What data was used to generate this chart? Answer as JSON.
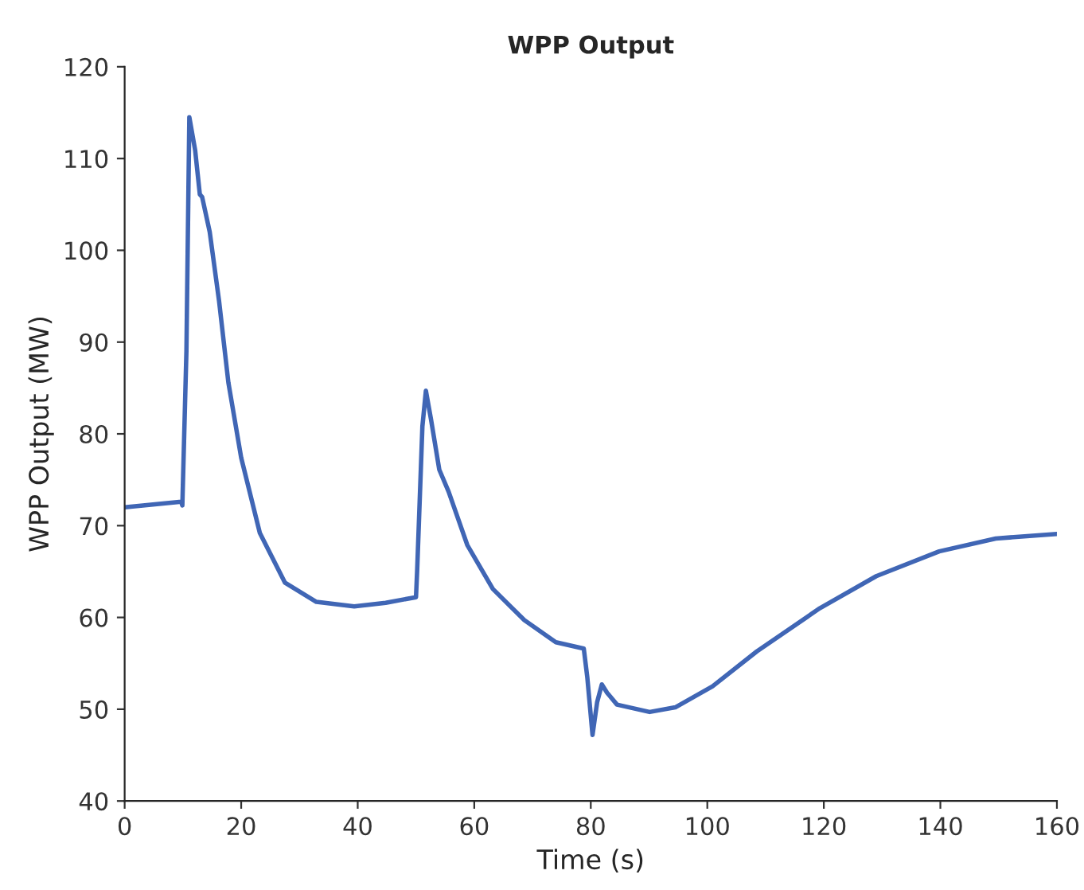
{
  "chart_data": {
    "type": "line",
    "title": "WPP Output",
    "xlabel": "Time (s)",
    "ylabel": "WPP Output (MW)",
    "xlim": [
      0,
      160
    ],
    "xticks": [
      0,
      20,
      40,
      60,
      80,
      100,
      120,
      140,
      160
    ],
    "ylim": [
      40,
      120
    ],
    "yticks": [
      40,
      50,
      60,
      70,
      80,
      90,
      100,
      110,
      120
    ],
    "grid": false,
    "legend": false,
    "series": [
      {
        "color": "#4066b5",
        "x": [
          0,
          9.7,
          9.9,
          10.6,
          11.1,
          12.1,
          12.9,
          13.3,
          14.6,
          16.2,
          17.8,
          20.0,
          23.2,
          27.5,
          32.9,
          39.4,
          44.8,
          50.0,
          50.2,
          51.1,
          51.7,
          52.6,
          54.0,
          55.6,
          58.8,
          63.2,
          68.6,
          74.0,
          78.8,
          79.4,
          80.3,
          81.1,
          81.9,
          82.8,
          84.5,
          90.1,
          94.5,
          100.9,
          108.5,
          119.3,
          129.0,
          139.8,
          149.5,
          160
        ],
        "values": [
          72.0,
          72.6,
          72.2,
          89,
          114.5,
          110.9,
          106.1,
          105.8,
          102.0,
          94.5,
          85.6,
          77.4,
          69.2,
          63.8,
          61.7,
          61.2,
          61.6,
          62.2,
          65.1,
          80.8,
          84.7,
          81.5,
          76.1,
          73.7,
          67.9,
          63.1,
          59.7,
          57.3,
          56.6,
          53.5,
          47.2,
          50.8,
          52.7,
          51.8,
          50.5,
          49.7,
          50.2,
          52.5,
          56.3,
          61.0,
          64.5,
          67.2,
          68.6,
          69.1
        ]
      }
    ]
  }
}
